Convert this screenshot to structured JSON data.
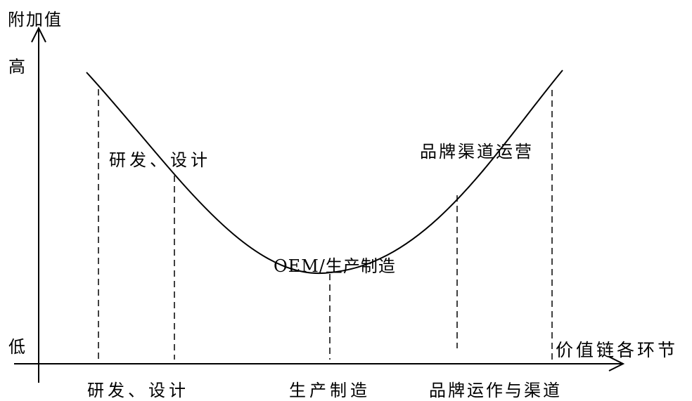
{
  "axes": {
    "y_label": "附加值",
    "x_label": "价值链各环节",
    "y_high": "高",
    "y_low": "低"
  },
  "curve_labels": {
    "left": "研发、设计",
    "bottom": "OEM/生产制造",
    "right": "品牌渠道运营"
  },
  "stages": [
    {
      "label": "研发、设计"
    },
    {
      "label": "生产制造"
    },
    {
      "label": "品牌运作与渠道"
    }
  ],
  "colors": {
    "line": "#000000",
    "background": "#ffffff"
  }
}
